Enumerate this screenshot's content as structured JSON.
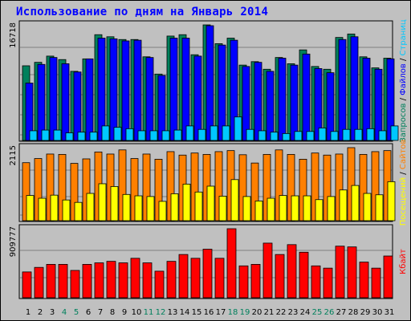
{
  "title": "Использование по дням на Январь 2014",
  "colors": {
    "hits": "#00805c",
    "files": "#0000ff",
    "pages": "#00c8ff",
    "sites": "#ff8000",
    "visits": "#ffff00",
    "kbytes": "#ff0000"
  },
  "chart_data": {
    "type": "bar",
    "title": "Использование по дням на Январь 2014",
    "categories": [
      "1",
      "2",
      "3",
      "4",
      "5",
      "6",
      "7",
      "8",
      "9",
      "10",
      "11",
      "12",
      "13",
      "14",
      "15",
      "16",
      "17",
      "18",
      "19",
      "20",
      "21",
      "22",
      "23",
      "24",
      "25",
      "26",
      "27",
      "28",
      "29",
      "30",
      "31"
    ],
    "weekend_days": [
      "4",
      "5",
      "11",
      "12",
      "18",
      "19",
      "25",
      "26"
    ],
    "panels": [
      {
        "name": "requests",
        "axis_max_label": "16718",
        "ymax": 16718,
        "side_labels": [
          {
            "text": "Запросов",
            "color": "#00805c"
          },
          {
            "text": " / ",
            "color": "#000000"
          },
          {
            "text": "Файлов",
            "color": "#0000ff"
          },
          {
            "text": " / ",
            "color": "#000000"
          },
          {
            "text": "Страниц",
            "color": "#00c8ff"
          }
        ],
        "series": [
          {
            "name": "Запросов",
            "color": "#00805c",
            "values": [
              10800,
              11300,
              12200,
              11700,
              10000,
              11800,
              15300,
              15000,
              14600,
              14600,
              12100,
              9600,
              15100,
              15300,
              12400,
              16718,
              14000,
              14800,
              10900,
              11400,
              10300,
              12000,
              11100,
              13100,
              10700,
              10300,
              14900,
              15400,
              12100,
              10500,
              11900
            ]
          },
          {
            "name": "Файлов",
            "color": "#0000ff",
            "values": [
              8300,
              11000,
              12000,
              11100,
              9900,
              11800,
              14800,
              14700,
              14400,
              14500,
              12000,
              9400,
              14800,
              14800,
              12200,
              16600,
              13800,
              14500,
              10700,
              11300,
              10000,
              11900,
              10900,
              12500,
              10400,
              9800,
              14600,
              15000,
              11900,
              10300,
              11800
            ]
          },
          {
            "name": "Страниц",
            "color": "#00c8ff",
            "values": [
              1400,
              1500,
              1500,
              1100,
              1200,
              1200,
              2100,
              1900,
              1700,
              1400,
              1400,
              1400,
              1500,
              2100,
              1600,
              2100,
              2100,
              3400,
              1600,
              1400,
              1200,
              1000,
              1300,
              1300,
              1800,
              1300,
              1600,
              1600,
              1700,
              1400,
              2100
            ]
          }
        ]
      },
      {
        "name": "visitors",
        "axis_max_label": "2115",
        "ymax": 2115,
        "side_labels": [
          {
            "text": "Посещений",
            "color": "#ffff00"
          },
          {
            "text": " / ",
            "color": "#000000"
          },
          {
            "text": "Сайтов",
            "color": "#ff8000"
          }
        ],
        "series": [
          {
            "name": "Сайтов",
            "color": "#ff8000",
            "values": [
              1680,
              1800,
              1930,
              1920,
              1660,
              1790,
              1990,
              1930,
              2050,
              1800,
              1930,
              1780,
              2000,
              1900,
              1960,
              1920,
              2000,
              2030,
              1910,
              1670,
              1920,
              2050,
              1920,
              1780,
              1960,
              1900,
              1930,
              2115,
              1920,
              2000,
              2030
            ]
          },
          {
            "name": "Посещений",
            "color": "#ffff00",
            "values": [
              730,
              650,
              740,
              600,
              530,
              790,
              1070,
              990,
              760,
              720,
              700,
              560,
              780,
              1060,
              830,
              1000,
              710,
              1190,
              700,
              570,
              650,
              730,
              720,
              720,
              610,
              700,
              890,
              1020,
              790,
              750,
              1130
            ]
          }
        ]
      },
      {
        "name": "traffic",
        "axis_max_label": "909777",
        "ymax": 909777,
        "side_labels": [
          {
            "text": "Кбайт",
            "color": "#ff0000"
          }
        ],
        "series": [
          {
            "name": "Кбайт",
            "color": "#ff0000",
            "values": [
              340000,
              400000,
              440000,
              440000,
              360000,
              440000,
              460000,
              480000,
              460000,
              520000,
              460000,
              350000,
              480000,
              570000,
              520000,
              640000,
              520000,
              909777,
              420000,
              440000,
              720000,
              570000,
              700000,
              600000,
              420000,
              390000,
              680000,
              670000,
              470000,
              390000,
              550000
            ]
          }
        ]
      }
    ]
  }
}
